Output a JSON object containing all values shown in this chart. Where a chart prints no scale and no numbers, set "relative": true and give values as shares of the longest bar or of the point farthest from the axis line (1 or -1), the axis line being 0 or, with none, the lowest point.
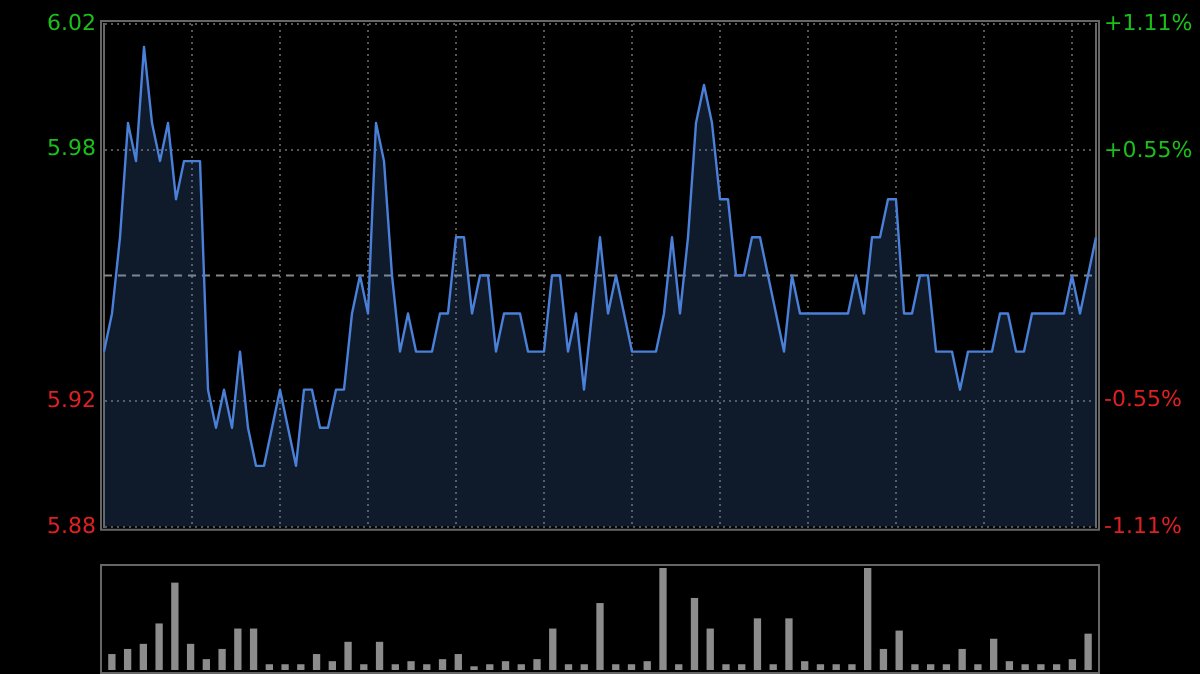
{
  "chart_data": [
    {
      "type": "area",
      "categories": [
        null,
        null,
        null,
        null,
        null,
        null,
        null,
        null,
        null,
        null,
        null,
        null,
        null,
        null,
        null,
        null,
        null,
        null,
        null,
        null,
        null,
        null,
        null,
        null,
        null,
        null,
        null,
        null,
        null,
        null,
        null,
        null,
        null,
        null,
        null,
        null,
        null,
        null,
        null,
        null,
        null,
        null,
        null,
        null,
        null,
        null,
        null,
        null,
        null,
        null,
        null,
        null,
        null,
        null,
        null,
        null,
        null,
        null,
        null,
        null,
        null,
        null,
        null,
        null,
        null,
        null,
        null,
        null,
        null,
        null,
        null,
        null,
        null,
        null,
        null,
        null,
        null,
        null,
        null,
        null,
        null,
        null,
        null,
        null,
        null,
        null,
        null,
        null,
        null,
        null,
        null,
        null,
        null,
        null,
        null,
        null,
        null,
        null,
        null,
        null,
        null,
        null,
        null,
        null,
        null,
        null,
        null,
        null,
        null,
        null,
        null,
        null,
        null,
        null,
        null,
        null,
        null,
        null,
        null,
        null,
        null,
        null,
        null,
        null,
        null
      ],
      "series": [
        {
          "color": "#4a80d8",
          "values": [
            5.93,
            5.94,
            5.96,
            5.99,
            5.98,
            6.01,
            5.99,
            5.98,
            5.99,
            5.97,
            5.98,
            5.98,
            5.98,
            5.92,
            5.91,
            5.92,
            5.91,
            5.93,
            5.91,
            5.9,
            5.9,
            5.91,
            5.92,
            5.91,
            5.9,
            5.92,
            5.92,
            5.91,
            5.91,
            5.92,
            5.92,
            5.94,
            5.95,
            5.94,
            5.99,
            5.98,
            5.95,
            5.93,
            5.94,
            5.93,
            5.93,
            5.93,
            5.94,
            5.94,
            5.96,
            5.96,
            5.94,
            5.95,
            5.95,
            5.93,
            5.94,
            5.94,
            5.94,
            5.93,
            5.93,
            5.93,
            5.95,
            5.95,
            5.93,
            5.94,
            5.92,
            5.94,
            5.96,
            5.94,
            5.95,
            5.94,
            5.93,
            5.93,
            5.93,
            5.93,
            5.94,
            5.96,
            5.94,
            5.96,
            5.99,
            6.0,
            5.99,
            5.97,
            5.97,
            5.95,
            5.95,
            5.96,
            5.96,
            5.95,
            5.94,
            5.93,
            5.95,
            5.94,
            5.94,
            5.94,
            5.94,
            5.94,
            5.94,
            5.94,
            5.95,
            5.94,
            5.96,
            5.96,
            5.97,
            5.97,
            5.94,
            5.94,
            5.95,
            5.95,
            5.93,
            5.93,
            5.93,
            5.92,
            5.93,
            5.93,
            5.93,
            5.93,
            5.94,
            5.94,
            5.93,
            5.93,
            5.94,
            5.94,
            5.94,
            5.94,
            5.94,
            5.95,
            5.94,
            5.95,
            5.96
          ]
        }
      ],
      "ylim": [
        5.884,
        6.016
      ],
      "yticks": [
        {
          "value": 6.016,
          "label": "6.02"
        },
        {
          "value": 5.983,
          "label": "5.98"
        },
        {
          "value": 5.917,
          "label": "5.92"
        },
        {
          "value": 5.884,
          "label": "5.88"
        }
      ],
      "y2lim": [
        -1.11,
        1.11
      ],
      "y2ticks": [
        {
          "value": 1.11,
          "label": "+1.11%"
        },
        {
          "value": 0.55,
          "label": "+0.55%"
        },
        {
          "value": -0.55,
          "label": "-0.55%"
        },
        {
          "value": -1.11,
          "label": "-1.11%"
        }
      ],
      "ref_lines": [
        {
          "axis": "y",
          "value": 5.95,
          "line_style": "dashed"
        }
      ],
      "grid": true,
      "legend": false
    },
    {
      "type": "bar",
      "relative": true,
      "categories": [
        null,
        null,
        null,
        null,
        null,
        null,
        null,
        null,
        null,
        null,
        null,
        null,
        null,
        null,
        null,
        null,
        null,
        null,
        null,
        null,
        null,
        null,
        null,
        null,
        null,
        null,
        null,
        null,
        null,
        null,
        null,
        null,
        null,
        null,
        null,
        null,
        null,
        null,
        null,
        null,
        null,
        null,
        null,
        null,
        null,
        null,
        null,
        null,
        null,
        null,
        null,
        null,
        null,
        null,
        null,
        null,
        null,
        null,
        null,
        null,
        null,
        null,
        null
      ],
      "values": [
        0.15,
        0.2,
        0.25,
        0.45,
        0.85,
        0.25,
        0.1,
        0.2,
        0.4,
        0.4,
        0.05,
        0.05,
        0.05,
        0.15,
        0.08,
        0.27,
        0.05,
        0.27,
        0.05,
        0.08,
        0.05,
        0.1,
        0.15,
        0.03,
        0.05,
        0.08,
        0.05,
        0.1,
        0.4,
        0.05,
        0.05,
        0.65,
        0.05,
        0.05,
        0.08,
        1.0,
        0.05,
        0.7,
        0.4,
        0.05,
        0.05,
        0.5,
        0.05,
        0.5,
        0.08,
        0.05,
        0.05,
        0.05,
        1.0,
        0.2,
        0.38,
        0.05,
        0.05,
        0.05,
        0.2,
        0.05,
        0.3,
        0.08,
        0.05,
        0.05,
        0.05,
        0.1,
        0.35
      ],
      "color": "#8c8c8c",
      "legend": false
    }
  ]
}
